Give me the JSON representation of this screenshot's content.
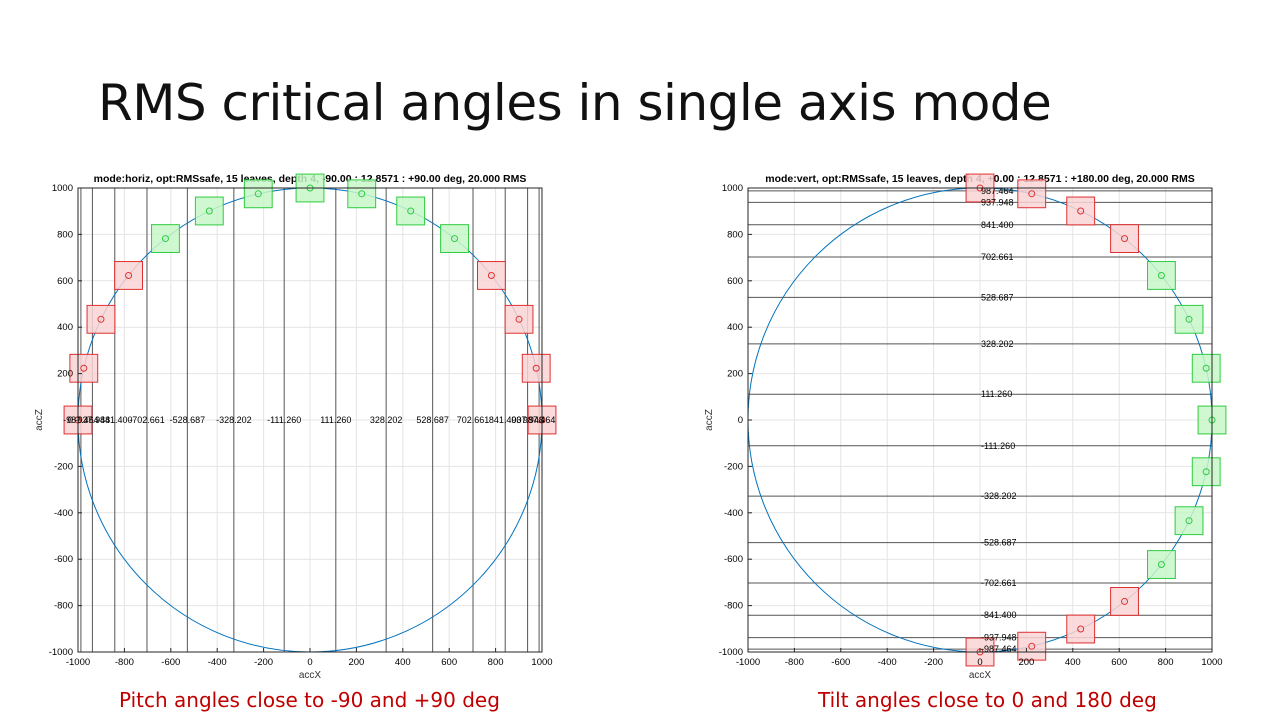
{
  "slide": {
    "title": "RMS critical angles in single axis mode",
    "caption_left": "Pitch angles close to -90 and +90 deg",
    "caption_right": "Tilt angles close to 0 and 180 deg"
  },
  "colors": {
    "circle": "#0072bd",
    "safe_fill": "#c8f7c8",
    "safe_stroke": "#2ecc40",
    "unsafe_fill": "#f9d3d3",
    "unsafe_stroke": "#e03030",
    "grid": "#e4e4e4",
    "threshold": "#555555"
  },
  "chart_data": [
    {
      "type": "scatter",
      "title": "mode:horiz, opt:RMSsafe, 15 leaves, depth 4, -90.00 : 12.8571 : +90.00 deg, 20.000 RMS",
      "xlabel": "accX",
      "ylabel": "accZ",
      "xlim": [
        -1000,
        1000
      ],
      "ylim": [
        -1000,
        1000
      ],
      "xticks": [
        -1000,
        -800,
        -600,
        -400,
        -200,
        0,
        200,
        400,
        600,
        800,
        1000
      ],
      "yticks": [
        -1000,
        -800,
        -600,
        -400,
        -200,
        0,
        200,
        400,
        600,
        800,
        1000
      ],
      "grid": true,
      "threshold_orientation": "vertical",
      "thresholds": [
        -987.464,
        -937.948,
        -841.4,
        -702.661,
        -528.687,
        -328.202,
        -111.26,
        111.26,
        328.202,
        528.687,
        702.661,
        841.4,
        937.948,
        987.464
      ],
      "threshold_labels": [
        "-987.464",
        "-937.948",
        "-841.400",
        "-702.661",
        "-528.687",
        "-328.202",
        "-111.260",
        "111.260",
        "328.202",
        "528.687",
        "702.661",
        "841.400",
        "937.948",
        "987.464"
      ],
      "circle_radius": 1000,
      "points": [
        {
          "x": -1000,
          "y": 0,
          "status": "unsafe"
        },
        {
          "x": -975,
          "y": 223,
          "status": "unsafe"
        },
        {
          "x": -901,
          "y": 434,
          "status": "unsafe"
        },
        {
          "x": -782,
          "y": 623,
          "status": "unsafe"
        },
        {
          "x": -623,
          "y": 782,
          "status": "safe"
        },
        {
          "x": -434,
          "y": 901,
          "status": "safe"
        },
        {
          "x": -223,
          "y": 975,
          "status": "safe"
        },
        {
          "x": 0,
          "y": 1000,
          "status": "safe"
        },
        {
          "x": 223,
          "y": 975,
          "status": "safe"
        },
        {
          "x": 434,
          "y": 901,
          "status": "safe"
        },
        {
          "x": 623,
          "y": 782,
          "status": "safe"
        },
        {
          "x": 782,
          "y": 623,
          "status": "unsafe"
        },
        {
          "x": 901,
          "y": 434,
          "status": "unsafe"
        },
        {
          "x": 975,
          "y": 223,
          "status": "unsafe"
        },
        {
          "x": 1000,
          "y": 0,
          "status": "unsafe"
        }
      ],
      "box_half_size": 60
    },
    {
      "type": "scatter",
      "title": "mode:vert, opt:RMSsafe, 15 leaves, depth 4, +0.00 : 12.8571 : +180.00 deg, 20.000 RMS",
      "xlabel": "accX",
      "ylabel": "accZ",
      "xlim": [
        -1000,
        1000
      ],
      "ylim": [
        -1000,
        1000
      ],
      "xticks": [
        -1000,
        -800,
        -600,
        -400,
        -200,
        0,
        200,
        400,
        600,
        800,
        1000
      ],
      "yticks": [
        -1000,
        -800,
        -600,
        -400,
        -200,
        0,
        200,
        400,
        600,
        800,
        1000
      ],
      "grid": true,
      "threshold_orientation": "horizontal",
      "thresholds": [
        987.464,
        937.948,
        841.4,
        702.661,
        528.687,
        328.202,
        111.26,
        -111.26,
        -328.202,
        -528.687,
        -702.661,
        -841.4,
        -937.948,
        -987.464
      ],
      "threshold_labels": [
        "987.464",
        "937.948",
        "841.400",
        "702.661",
        "528.687",
        "328.202",
        "111.260",
        "-111.260",
        "-328.202",
        "-528.687",
        "-702.661",
        "-841.400",
        "-937.948",
        "-987.464"
      ],
      "circle_radius": 1000,
      "points": [
        {
          "x": 0,
          "y": 1000,
          "status": "unsafe"
        },
        {
          "x": 223,
          "y": 975,
          "status": "unsafe"
        },
        {
          "x": 434,
          "y": 901,
          "status": "unsafe"
        },
        {
          "x": 623,
          "y": 782,
          "status": "unsafe"
        },
        {
          "x": 782,
          "y": 623,
          "status": "safe"
        },
        {
          "x": 901,
          "y": 434,
          "status": "safe"
        },
        {
          "x": 975,
          "y": 223,
          "status": "safe"
        },
        {
          "x": 1000,
          "y": 0,
          "status": "safe"
        },
        {
          "x": 975,
          "y": -223,
          "status": "safe"
        },
        {
          "x": 901,
          "y": -434,
          "status": "safe"
        },
        {
          "x": 782,
          "y": -623,
          "status": "safe"
        },
        {
          "x": 623,
          "y": -782,
          "status": "unsafe"
        },
        {
          "x": 434,
          "y": -901,
          "status": "unsafe"
        },
        {
          "x": 223,
          "y": -975,
          "status": "unsafe"
        },
        {
          "x": 0,
          "y": -1000,
          "status": "unsafe"
        }
      ],
      "box_half_size": 60
    }
  ]
}
